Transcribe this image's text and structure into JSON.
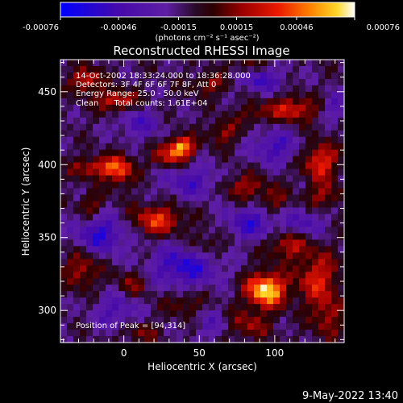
{
  "chart_data": {
    "type": "heatmap",
    "title": "Reconstructed RHESSI Image",
    "xlabel": "Heliocentric X (arcsec)",
    "ylabel": "Heliocentric Y (arcsec)",
    "xlim": [
      -42,
      146
    ],
    "ylim": [
      278,
      472
    ],
    "x_ticks": [
      0,
      50,
      100
    ],
    "y_ticks": [
      300,
      350,
      400,
      450
    ],
    "grid": false,
    "colorbar": {
      "range": [
        -0.00076,
        0.00076
      ],
      "tick_labels": [
        "-0.00076",
        "-0.00046",
        "-0.00015",
        "0.00015",
        "0.00046",
        "0.00076"
      ],
      "unit_label": "(photons cm⁻² s⁻¹ asec⁻²)"
    },
    "info_lines": [
      "14-Oct-2002 18:33:24.000 to 18:36:28.000",
      "Detectors: 3F 4F 6F 6F 7F 8F, Att 0",
      "Energy Range: 25.0 - 50.0 keV",
      "Clean      Total counts: 1.61E+04"
    ],
    "peak_label": "Position of Peak = [94,314]",
    "peak": [
      94,
      314
    ],
    "blobs": [
      {
        "x": 94,
        "y": 314,
        "amp": 0.00084,
        "sx": 9,
        "sy": 8
      },
      {
        "x": 128,
        "y": 322,
        "amp": 0.00042,
        "sx": 10,
        "sy": 13
      },
      {
        "x": 108,
        "y": 345,
        "amp": 0.00035,
        "sx": 10,
        "sy": 7
      },
      {
        "x": 80,
        "y": 290,
        "amp": 0.0003,
        "sx": 12,
        "sy": 7
      },
      {
        "x": 135,
        "y": 295,
        "amp": 0.0003,
        "sx": 7,
        "sy": 10
      },
      {
        "x": 38,
        "y": 412,
        "amp": 0.00072,
        "sx": 6,
        "sy": 5
      },
      {
        "x": 28,
        "y": 405,
        "amp": 0.00036,
        "sx": 7,
        "sy": 5
      },
      {
        "x": -5,
        "y": 444,
        "amp": 0.00046,
        "sx": 9,
        "sy": 5
      },
      {
        "x": -25,
        "y": 458,
        "amp": 0.00044,
        "sx": 7,
        "sy": 6
      },
      {
        "x": -16,
        "y": 398,
        "amp": 0.00044,
        "sx": 12,
        "sy": 5
      },
      {
        "x": -2,
        "y": 395,
        "amp": 0.00036,
        "sx": 6,
        "sy": 8
      },
      {
        "x": 22,
        "y": 362,
        "amp": 0.00048,
        "sx": 12,
        "sy": 7
      },
      {
        "x": 58,
        "y": 455,
        "amp": 0.00028,
        "sx": 10,
        "sy": 5
      },
      {
        "x": 66,
        "y": 422,
        "amp": 0.0003,
        "sx": 7,
        "sy": 6
      },
      {
        "x": 86,
        "y": 435,
        "amp": 0.00024,
        "sx": 7,
        "sy": 5
      },
      {
        "x": 112,
        "y": 438,
        "amp": 0.00045,
        "sx": 11,
        "sy": 6
      },
      {
        "x": 130,
        "y": 402,
        "amp": 0.0005,
        "sx": 8,
        "sy": 9
      },
      {
        "x": 132,
        "y": 378,
        "amp": 0.00028,
        "sx": 9,
        "sy": 6
      },
      {
        "x": 78,
        "y": 385,
        "amp": 0.00033,
        "sx": 10,
        "sy": 6
      },
      {
        "x": 98,
        "y": 375,
        "amp": 0.00026,
        "sx": 7,
        "sy": 7
      },
      {
        "x": -28,
        "y": 328,
        "amp": 0.00034,
        "sx": 8,
        "sy": 9
      },
      {
        "x": 5,
        "y": 318,
        "amp": 0.00026,
        "sx": 8,
        "sy": 7
      },
      {
        "x": 40,
        "y": 305,
        "amp": 0.00024,
        "sx": 9,
        "sy": 6
      },
      {
        "x": 55,
        "y": 345,
        "amp": 0.00024,
        "sx": 8,
        "sy": 6
      },
      {
        "x": 10,
        "y": 285,
        "amp": 0.00024,
        "sx": 9,
        "sy": 5
      },
      {
        "x": 80,
        "y": 468,
        "amp": 0.00024,
        "sx": 8,
        "sy": 4
      },
      {
        "x": -22,
        "y": 372,
        "amp": 0.00026,
        "sx": 6,
        "sy": 6
      },
      {
        "x": 10,
        "y": 428,
        "amp": -0.0003,
        "sx": 10,
        "sy": 7
      },
      {
        "x": 90,
        "y": 458,
        "amp": -0.00035,
        "sx": 12,
        "sy": 6
      },
      {
        "x": 45,
        "y": 388,
        "amp": -0.00032,
        "sx": 14,
        "sy": 8
      },
      {
        "x": -15,
        "y": 352,
        "amp": -0.00045,
        "sx": 12,
        "sy": 9
      },
      {
        "x": 40,
        "y": 330,
        "amp": -0.00046,
        "sx": 16,
        "sy": 10
      },
      {
        "x": 85,
        "y": 360,
        "amp": -0.0004,
        "sx": 12,
        "sy": 8
      },
      {
        "x": 120,
        "y": 360,
        "amp": -0.0003,
        "sx": 9,
        "sy": 7
      },
      {
        "x": -5,
        "y": 300,
        "amp": -0.0003,
        "sx": 10,
        "sy": 9
      },
      {
        "x": 100,
        "y": 412,
        "amp": -0.00036,
        "sx": 11,
        "sy": 8
      },
      {
        "x": 140,
        "y": 440,
        "amp": -0.00028,
        "sx": 6,
        "sy": 6
      },
      {
        "x": 60,
        "y": 290,
        "amp": -0.00026,
        "sx": 9,
        "sy": 7
      }
    ]
  },
  "footer": {
    "timestamp": "9-May-2022 13:40"
  }
}
